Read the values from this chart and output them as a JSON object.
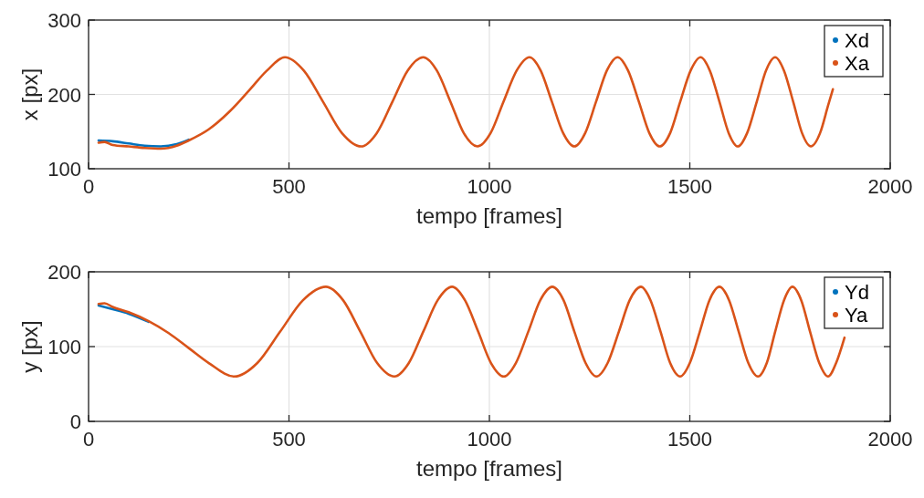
{
  "chart_data": [
    {
      "type": "line",
      "xlabel": "tempo [frames]",
      "ylabel": "x [px]",
      "xlim": [
        0,
        2000
      ],
      "xticks": [
        0,
        500,
        1000,
        1500,
        2000
      ],
      "ylim": [
        100,
        300
      ],
      "yticks": [
        100,
        200,
        300
      ],
      "grid": true,
      "legend": "top right",
      "line_style": "solid",
      "series": [
        {
          "name": "Xd",
          "color": "#0072bd",
          "x": [
            25,
            60,
            100,
            140,
            180,
            220,
            250
          ],
          "values": [
            138,
            137,
            134,
            131,
            130,
            133,
            139
          ]
        },
        {
          "name": "Xa",
          "color": "#d95319",
          "x": [
            25,
            40,
            60,
            100,
            140,
            180,
            220,
            250,
            300,
            350,
            400,
            445,
            490,
            537,
            585,
            632,
            680,
            719,
            758,
            796,
            835,
            869,
            903,
            936,
            970,
            1003,
            1035,
            1068,
            1100,
            1128,
            1156,
            1184,
            1212,
            1239,
            1266,
            1293,
            1320,
            1346,
            1373,
            1399,
            1425,
            1451,
            1476,
            1502,
            1527,
            1550,
            1574,
            1597,
            1620,
            1643,
            1667,
            1690,
            1713,
            1735,
            1758,
            1780,
            1802,
            1825,
            1845,
            1857
          ],
          "values": [
            135,
            136,
            132,
            130,
            128,
            127,
            131,
            138,
            153,
            176,
            205,
            232,
            250,
            232,
            190,
            148,
            130,
            148,
            190,
            232,
            250,
            232,
            190,
            148,
            130,
            148,
            190,
            232,
            250,
            232,
            190,
            148,
            130,
            148,
            190,
            232,
            250,
            232,
            190,
            148,
            130,
            148,
            190,
            232,
            250,
            232,
            190,
            148,
            130,
            148,
            190,
            232,
            250,
            232,
            190,
            148,
            130,
            148,
            185,
            207
          ]
        }
      ]
    },
    {
      "type": "line",
      "xlabel": "tempo [frames]",
      "ylabel": "y [px]",
      "xlim": [
        0,
        2000
      ],
      "xticks": [
        0,
        500,
        1000,
        1500,
        2000
      ],
      "ylim": [
        0,
        200
      ],
      "yticks": [
        0,
        100,
        200
      ],
      "grid": true,
      "legend": "top right",
      "line_style": "solid",
      "series": [
        {
          "name": "Yd",
          "color": "#0072bd",
          "x": [
            25,
            60,
            100,
            150
          ],
          "values": [
            155,
            150,
            144,
            133
          ]
        },
        {
          "name": "Ya",
          "color": "#d95319",
          "x": [
            25,
            40,
            60,
            100,
            150,
            200,
            250,
            300,
            364,
            421,
            478,
            535,
            592,
            635,
            678,
            720,
            763,
            799,
            835,
            871,
            907,
            939,
            972,
            1004,
            1036,
            1066,
            1097,
            1127,
            1157,
            1185,
            1212,
            1240,
            1267,
            1295,
            1323,
            1350,
            1378,
            1402,
            1427,
            1451,
            1476,
            1500,
            1525,
            1549,
            1574,
            1598,
            1622,
            1646,
            1670,
            1692,
            1713,
            1735,
            1756,
            1778,
            1800,
            1823,
            1845,
            1865,
            1886
          ],
          "values": [
            157,
            158,
            153,
            146,
            134,
            118,
            98,
            78,
            60,
            78,
            120,
            162,
            180,
            162,
            120,
            78,
            60,
            78,
            120,
            162,
            180,
            162,
            120,
            78,
            60,
            78,
            120,
            162,
            180,
            162,
            120,
            78,
            60,
            78,
            120,
            162,
            180,
            162,
            120,
            78,
            60,
            78,
            120,
            162,
            180,
            162,
            120,
            78,
            60,
            78,
            120,
            162,
            180,
            162,
            120,
            78,
            60,
            78,
            112
          ]
        }
      ]
    }
  ]
}
